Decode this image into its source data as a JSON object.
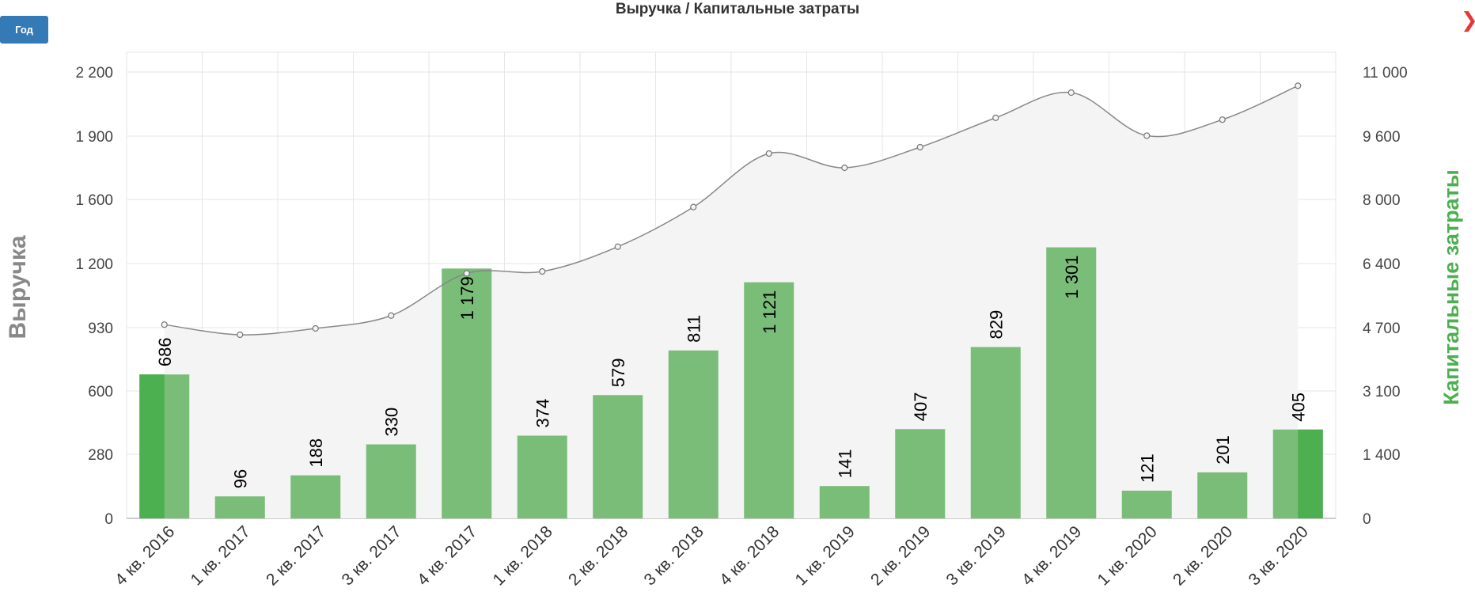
{
  "controls": {
    "period_label": "Год"
  },
  "icons": {
    "close": "chevron-right-icon"
  },
  "colors": {
    "bar": "#79bd79",
    "bar_highlight": "#4caf50",
    "line": "#888888",
    "area": "#f4f4f4",
    "left_axis_title": "#888888",
    "right_axis_title": "#4caf50"
  },
  "chart_data": {
    "type": "bar",
    "title": "Выручка / Капитальные затраты",
    "categories": [
      "4 кв. 2016",
      "1 кв. 2017",
      "2 кв. 2017",
      "3 кв. 2017",
      "4 кв. 2017",
      "1 кв. 2018",
      "2 кв. 2018",
      "3 кв. 2018",
      "4 кв. 2018",
      "1 кв. 2019",
      "2 кв. 2019",
      "3 кв. 2019",
      "4 кв. 2019",
      "1 кв. 2020",
      "2 кв. 2020",
      "3 кв. 2020"
    ],
    "left_axis": {
      "title": "Выручка",
      "ticks": [
        0,
        280,
        600,
        930,
        1200,
        1600,
        1900,
        2200
      ],
      "tick_labels": [
        "0",
        "280",
        "600",
        "930",
        "1 200",
        "1 600",
        "1 900",
        "2 200"
      ]
    },
    "right_axis": {
      "title": "Капитальные затраты",
      "ticks": [
        0,
        1400,
        3100,
        4700,
        6400,
        8000,
        9600,
        11000
      ],
      "tick_labels": [
        "0",
        "1 400",
        "3 100",
        "4 700",
        "6 400",
        "8 000",
        "9 600",
        "11 000"
      ]
    },
    "bars": {
      "values": [
        686,
        96,
        188,
        330,
        1179,
        374,
        579,
        811,
        1121,
        141,
        407,
        829,
        1301,
        121,
        201,
        405
      ],
      "labels": [
        "686",
        "96",
        "188",
        "330",
        "1 179",
        "374",
        "579",
        "811",
        "1 121",
        "141",
        "407",
        "829",
        "1 301",
        "121",
        "201",
        "405"
      ],
      "highlight_left": [
        0
      ],
      "highlight_right": [
        15
      ]
    },
    "line": {
      "values": [
        4780,
        4520,
        4680,
        5020,
        6140,
        6190,
        6820,
        7810,
        9160,
        8800,
        9320,
        10000,
        10550,
        9610,
        9960,
        10700
      ]
    },
    "grid": true,
    "legend": "none"
  }
}
